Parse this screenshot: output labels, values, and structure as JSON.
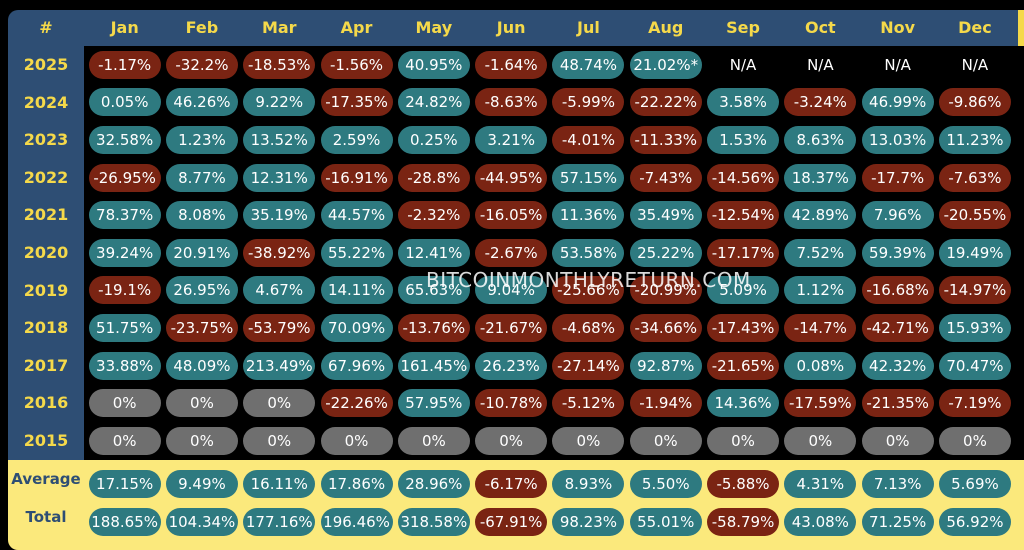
{
  "watermark": "BITCOINMONTHLYRETURN.COM",
  "header": {
    "corner": "#",
    "months": [
      "Jan",
      "Feb",
      "Mar",
      "Apr",
      "May",
      "Jun",
      "Jul",
      "Aug",
      "Sep",
      "Oct",
      "Nov",
      "Dec"
    ]
  },
  "colors": {
    "positive": "#2e7a80",
    "negative": "#7a2413",
    "zero": "#6f6f6f",
    "header": "#2e4e74",
    "accent": "#f5d94a",
    "summary": "#fbe97c"
  },
  "chart_data": {
    "type": "table",
    "columns": [
      "Jan",
      "Feb",
      "Mar",
      "Apr",
      "May",
      "Jun",
      "Jul",
      "Aug",
      "Sep",
      "Oct",
      "Nov",
      "Dec"
    ],
    "rows": [
      {
        "year": "2025",
        "values": [
          "-1.17%",
          "-32.2%",
          "-18.53%",
          "-1.56%",
          "40.95%",
          "-1.64%",
          "48.74%",
          "21.02%*",
          "N/A",
          "N/A",
          "N/A",
          "N/A"
        ]
      },
      {
        "year": "2024",
        "values": [
          "0.05%",
          "46.26%",
          "9.22%",
          "-17.35%",
          "24.82%",
          "-8.63%",
          "-5.99%",
          "-22.22%",
          "3.58%",
          "-3.24%",
          "46.99%",
          "-9.86%"
        ]
      },
      {
        "year": "2023",
        "values": [
          "32.58%",
          "1.23%",
          "13.52%",
          "2.59%",
          "0.25%",
          "3.21%",
          "-4.01%",
          "-11.33%",
          "1.53%",
          "8.63%",
          "13.03%",
          "11.23%"
        ]
      },
      {
        "year": "2022",
        "values": [
          "-26.95%",
          "8.77%",
          "12.31%",
          "-16.91%",
          "-28.8%",
          "-44.95%",
          "57.15%",
          "-7.43%",
          "-14.56%",
          "18.37%",
          "-17.7%",
          "-7.63%"
        ]
      },
      {
        "year": "2021",
        "values": [
          "78.37%",
          "8.08%",
          "35.19%",
          "44.57%",
          "-2.32%",
          "-16.05%",
          "11.36%",
          "35.49%",
          "-12.54%",
          "42.89%",
          "7.96%",
          "-20.55%"
        ]
      },
      {
        "year": "2020",
        "values": [
          "39.24%",
          "20.91%",
          "-38.92%",
          "55.22%",
          "12.41%",
          "-2.67%",
          "53.58%",
          "25.22%",
          "-17.17%",
          "7.52%",
          "59.39%",
          "19.49%"
        ]
      },
      {
        "year": "2019",
        "values": [
          "-19.1%",
          "26.95%",
          "4.67%",
          "14.11%",
          "65.63%",
          "9.04%",
          "-25.66%",
          "-20.99%",
          "5.09%",
          "1.12%",
          "-16.68%",
          "-14.97%"
        ]
      },
      {
        "year": "2018",
        "values": [
          "51.75%",
          "-23.75%",
          "-53.79%",
          "70.09%",
          "-13.76%",
          "-21.67%",
          "-4.68%",
          "-34.66%",
          "-17.43%",
          "-14.7%",
          "-42.71%",
          "15.93%"
        ]
      },
      {
        "year": "2017",
        "values": [
          "33.88%",
          "48.09%",
          "213.49%",
          "67.96%",
          "161.45%",
          "26.23%",
          "-27.14%",
          "92.87%",
          "-21.65%",
          "0.08%",
          "42.32%",
          "70.47%"
        ]
      },
      {
        "year": "2016",
        "values": [
          "0%",
          "0%",
          "0%",
          "-22.26%",
          "57.95%",
          "-10.78%",
          "-5.12%",
          "-1.94%",
          "14.36%",
          "-17.59%",
          "-21.35%",
          "-7.19%"
        ]
      },
      {
        "year": "2015",
        "values": [
          "0%",
          "0%",
          "0%",
          "0%",
          "0%",
          "0%",
          "0%",
          "0%",
          "0%",
          "0%",
          "0%",
          "0%"
        ]
      }
    ],
    "summary": [
      {
        "label": "Average",
        "values": [
          "17.15%",
          "9.49%",
          "16.11%",
          "17.86%",
          "28.96%",
          "-6.17%",
          "8.93%",
          "5.50%",
          "-5.88%",
          "4.31%",
          "7.13%",
          "5.69%"
        ]
      },
      {
        "label": "Total",
        "values": [
          "188.65%",
          "104.34%",
          "177.16%",
          "196.46%",
          "318.58%",
          "-67.91%",
          "98.23%",
          "55.01%",
          "-58.79%",
          "43.08%",
          "71.25%",
          "56.92%"
        ]
      }
    ]
  }
}
